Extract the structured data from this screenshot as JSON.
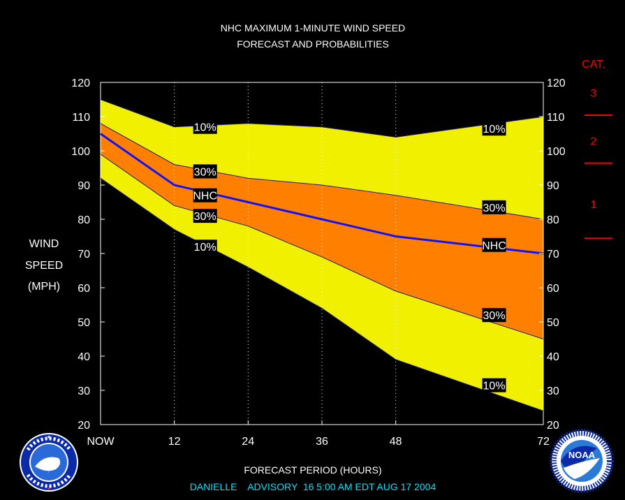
{
  "colors": {
    "background": "#000000",
    "outer_band": "#f0f000",
    "inner_band": "#ff8000",
    "nhc_line": "#1010ff",
    "category": "#ff0000",
    "footer": "#00e5ff",
    "text": "#ffffff"
  },
  "chart_data": {
    "type": "area",
    "title": "NHC MAXIMUM 1-MINUTE WIND SPEED",
    "subtitle": "FORECAST AND PROBABILITIES",
    "xlabel": "FORECAST PERIOD (HOURS)",
    "ylabel": [
      "WIND",
      "SPEED",
      "(MPH)"
    ],
    "ylim": [
      20,
      120
    ],
    "xlim": [
      0,
      72
    ],
    "y_ticks": [
      20,
      30,
      40,
      50,
      60,
      70,
      80,
      90,
      100,
      110,
      120
    ],
    "x_ticks": [
      0,
      12,
      24,
      36,
      48,
      72
    ],
    "x_tick_labels": [
      "NOW",
      "12",
      "24",
      "36",
      "48",
      "72"
    ],
    "dotted_gridlines_x": [
      12,
      24,
      36,
      48
    ],
    "x": [
      0,
      12,
      24,
      36,
      48,
      72
    ],
    "series": [
      {
        "name": "10%",
        "role": "upper",
        "values": [
          115,
          107,
          108,
          107,
          104,
          110
        ]
      },
      {
        "name": "30%",
        "role": "upper",
        "values": [
          108,
          96,
          92,
          90,
          87,
          80
        ]
      },
      {
        "name": "NHC",
        "role": "forecast",
        "values": [
          105,
          90,
          85,
          80,
          75,
          70
        ]
      },
      {
        "name": "30%",
        "role": "lower",
        "values": [
          99,
          84,
          78,
          69,
          59,
          45
        ]
      },
      {
        "name": "10%",
        "role": "lower",
        "values": [
          92,
          77,
          66,
          54,
          39,
          24
        ]
      }
    ],
    "annotations": [
      {
        "text": "10%",
        "x": 17,
        "y": 107
      },
      {
        "text": "30%",
        "x": 17,
        "y": 94
      },
      {
        "text": "NHC",
        "x": 17,
        "y": 87
      },
      {
        "text": "30%",
        "x": 17,
        "y": 81
      },
      {
        "text": "10%",
        "x": 17,
        "y": 72
      },
      {
        "text": "10%",
        "x": 64,
        "y": 106.5
      },
      {
        "text": "30%",
        "x": 64,
        "y": 83.5
      },
      {
        "text": "NHC",
        "x": 64,
        "y": 72.5
      },
      {
        "text": "30%",
        "x": 64,
        "y": 52
      },
      {
        "text": "10%",
        "x": 64,
        "y": 31.5
      }
    ],
    "categories_scale": {
      "title": "CAT.",
      "labels": [
        {
          "text": "3",
          "y": 117
        },
        {
          "text": "2",
          "y": 103
        },
        {
          "text": "1",
          "y": 84.5
        }
      ],
      "thresholds": [
        110,
        96,
        74
      ]
    }
  },
  "footer": {
    "advisory": "DANIELLE    ADVISORY  16 5:00 AM EDT AUG 17 2004"
  },
  "logos": {
    "left": {
      "name": "nws-logo",
      "text": "NATIONAL WEATHER SERVICE"
    },
    "right": {
      "name": "noaa-logo",
      "text": "NOAA"
    }
  }
}
